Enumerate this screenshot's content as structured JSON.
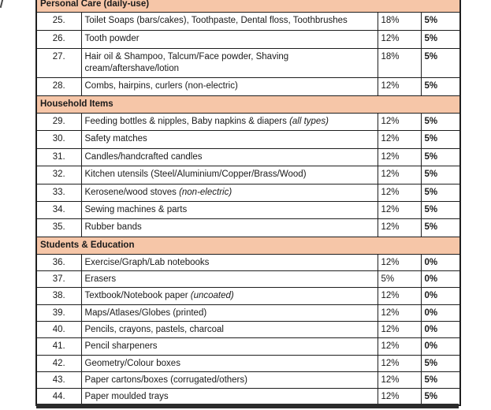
{
  "colors": {
    "page_bg": "#ffffff",
    "section_header_bg": "#f6c6a8",
    "border": "#1e1e1e",
    "text": "#1a1a1a",
    "bottom_bar": "#2b2b2b"
  },
  "table": {
    "sections": [
      {
        "title": "Personal Care (daily-use)",
        "rows": [
          {
            "sno": "25.",
            "desc": "Toilet Soaps (bars/cakes), Toothpaste, Dental floss, Toothbrushes",
            "old": "18%",
            "new": "5%"
          },
          {
            "sno": "26.",
            "desc": "Tooth powder",
            "old": "12%",
            "new": "5%"
          },
          {
            "sno": "27.",
            "desc": "Hair oil & Shampoo, Talcum/Face powder, Shaving cream/aftershave/lotion",
            "old": "18%",
            "new": "5%",
            "tall": true
          },
          {
            "sno": "28.",
            "desc": "Combs, hairpins, curlers (non-electric)",
            "old": "12%",
            "new": "5%"
          }
        ]
      },
      {
        "title": "Household Items",
        "rows": [
          {
            "sno": "29.",
            "desc": "Feeding bottles & nipples, Baby napkins & diapers",
            "desc_italic": "(all types)",
            "old": "12%",
            "new": "5%"
          },
          {
            "sno": "30.",
            "desc": "Safety matches",
            "old": "12%",
            "new": "5%"
          },
          {
            "sno": "31.",
            "desc": "Candles/handcrafted candles",
            "old": "12%",
            "new": "5%"
          },
          {
            "sno": "32.",
            "desc": "Kitchen utensils (Steel/Aluminium/Copper/Brass/Wood)",
            "old": "12%",
            "new": "5%"
          },
          {
            "sno": "33.",
            "desc": "Kerosene/wood stoves",
            "desc_italic": "(non-electric)",
            "old": "12%",
            "new": "5%"
          },
          {
            "sno": "34.",
            "desc": "Sewing machines & parts",
            "old": "12%",
            "new": "5%"
          },
          {
            "sno": "35.",
            "desc": "Rubber bands",
            "old": "12%",
            "new": "5%"
          }
        ]
      },
      {
        "title": "Students & Education",
        "rows": [
          {
            "sno": "36.",
            "desc": "Exercise/Graph/Lab notebooks",
            "old": "12%",
            "new": "0%"
          },
          {
            "sno": "37.",
            "desc": "Erasers",
            "old": "5%",
            "new": "0%"
          },
          {
            "sno": "38.",
            "desc": "Textbook/Notebook paper",
            "desc_italic": "(uncoated)",
            "old": "12%",
            "new": "0%"
          },
          {
            "sno": "39.",
            "desc": "Maps/Atlases/Globes (printed)",
            "old": "12%",
            "new": "0%"
          },
          {
            "sno": "40.",
            "desc": "Pencils, crayons, pastels, charcoal",
            "old": "12%",
            "new": "0%"
          },
          {
            "sno": "41.",
            "desc": "Pencil sharpeners",
            "old": "12%",
            "new": "0%"
          },
          {
            "sno": "42.",
            "desc": "Geometry/Colour boxes",
            "old": "12%",
            "new": "5%"
          },
          {
            "sno": "43.",
            "desc": "Paper cartons/boxes (corrugated/others)",
            "old": "12%",
            "new": "5%"
          },
          {
            "sno": "44.",
            "desc": "Paper moulded trays",
            "old": "12%",
            "new": "5%"
          }
        ]
      }
    ]
  }
}
